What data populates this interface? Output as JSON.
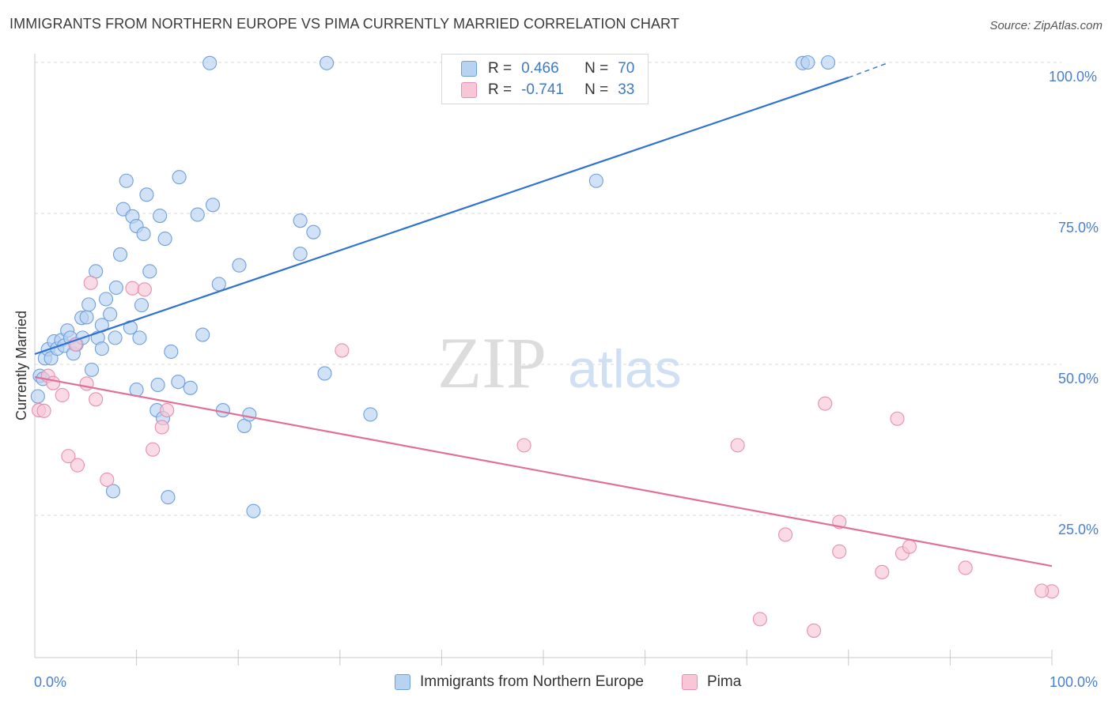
{
  "header": {
    "title": "IMMIGRANTS FROM NORTHERN EUROPE VS PIMA CURRENTLY MARRIED CORRELATION CHART",
    "source": "Source: ZipAtlas.com"
  },
  "watermark": {
    "zip": "ZIP",
    "atlas": "atlas"
  },
  "legend": {
    "rows": [
      {
        "r_key": "R =",
        "r_value": "0.466",
        "n_key": "N =",
        "n_value": "70",
        "color": "#a9c8f0"
      },
      {
        "r_key": "R =",
        "r_value": "-0.741",
        "n_key": "N =",
        "n_value": "33",
        "color": "#f6bcd0"
      }
    ]
  },
  "bottom_legend": {
    "items": [
      {
        "label": "Immigrants from Northern Europe",
        "color": "#a9c8f0"
      },
      {
        "label": "Pima",
        "color": "#f6bcd0"
      }
    ]
  },
  "axes": {
    "ylabel": "Currently Married",
    "x_ticks": {
      "left": "0.0%",
      "right": "100.0%"
    },
    "y_ticks": [
      "100.0%",
      "75.0%",
      "50.0%",
      "25.0%"
    ]
  },
  "colors": {
    "blue_fill": "#b8d2f2",
    "blue_stroke": "#6e9fdc",
    "blue_line": "#2f72d0",
    "pink_fill": "#f8c6d6",
    "pink_stroke": "#e68fae",
    "pink_line": "#e0709a",
    "grid": "#d9d9d9",
    "tick_text": "#4a7fcf"
  },
  "chart_data": {
    "type": "scatter",
    "xlim": [
      0,
      100
    ],
    "ylim": [
      0,
      100
    ],
    "xlabel": "",
    "ylabel": "Currently Married",
    "grid": true,
    "y_gridlines": [
      25,
      50,
      75,
      100
    ],
    "series": [
      {
        "name": "Immigrants from Northern Europe",
        "R": 0.466,
        "N": 70,
        "trend": {
          "x0": 0,
          "y0": 51.7,
          "x1": 80,
          "y1": 97.5,
          "dashed_to_x": 84,
          "dashed_to_y": 100
        },
        "points": [
          [
            0.3,
            44.7
          ],
          [
            0.5,
            48.1
          ],
          [
            0.8,
            47.6
          ],
          [
            1.0,
            51.0
          ],
          [
            1.3,
            52.5
          ],
          [
            1.6,
            51.0
          ],
          [
            1.9,
            53.8
          ],
          [
            2.2,
            52.6
          ],
          [
            2.6,
            54.0
          ],
          [
            2.9,
            53.1
          ],
          [
            3.2,
            55.6
          ],
          [
            3.5,
            54.4
          ],
          [
            3.8,
            51.8
          ],
          [
            4.1,
            53.3
          ],
          [
            4.6,
            57.7
          ],
          [
            4.7,
            54.4
          ],
          [
            5.1,
            57.8
          ],
          [
            5.3,
            59.9
          ],
          [
            5.6,
            49.1
          ],
          [
            6.0,
            65.4
          ],
          [
            6.2,
            54.4
          ],
          [
            6.6,
            52.6
          ],
          [
            6.6,
            56.5
          ],
          [
            7.0,
            60.8
          ],
          [
            7.4,
            58.3
          ],
          [
            7.7,
            29.0
          ],
          [
            7.9,
            54.4
          ],
          [
            8.0,
            62.7
          ],
          [
            8.4,
            68.2
          ],
          [
            8.7,
            75.7
          ],
          [
            9.0,
            80.4
          ],
          [
            9.4,
            56.1
          ],
          [
            9.6,
            74.5
          ],
          [
            10.0,
            45.8
          ],
          [
            10.0,
            72.9
          ],
          [
            10.3,
            54.4
          ],
          [
            10.5,
            59.8
          ],
          [
            10.7,
            71.6
          ],
          [
            11.0,
            78.1
          ],
          [
            11.3,
            65.4
          ],
          [
            12.0,
            42.4
          ],
          [
            12.1,
            46.6
          ],
          [
            12.3,
            74.6
          ],
          [
            12.6,
            41.1
          ],
          [
            12.8,
            70.8
          ],
          [
            13.1,
            28.0
          ],
          [
            13.4,
            52.1
          ],
          [
            14.1,
            47.1
          ],
          [
            14.2,
            81.0
          ],
          [
            15.3,
            46.1
          ],
          [
            16.0,
            74.8
          ],
          [
            16.5,
            54.9
          ],
          [
            17.2,
            99.9
          ],
          [
            17.5,
            76.4
          ],
          [
            18.1,
            63.3
          ],
          [
            18.5,
            42.4
          ],
          [
            20.1,
            66.4
          ],
          [
            20.6,
            39.8
          ],
          [
            21.1,
            41.7
          ],
          [
            21.5,
            25.7
          ],
          [
            26.1,
            73.8
          ],
          [
            26.1,
            68.3
          ],
          [
            27.4,
            71.9
          ],
          [
            28.5,
            48.5
          ],
          [
            28.7,
            99.9
          ],
          [
            33.0,
            41.7
          ],
          [
            55.2,
            80.4
          ],
          [
            75.5,
            99.9
          ],
          [
            76.0,
            100.0
          ],
          [
            78.0,
            100.0
          ]
        ]
      },
      {
        "name": "Pima",
        "R": -0.741,
        "N": 33,
        "trend": {
          "x0": 0,
          "y0": 47.9,
          "x1": 100,
          "y1": 16.6
        },
        "points": [
          [
            0.4,
            42.4
          ],
          [
            0.9,
            42.3
          ],
          [
            1.3,
            48.1
          ],
          [
            1.8,
            46.9
          ],
          [
            2.7,
            44.9
          ],
          [
            3.3,
            34.8
          ],
          [
            4.2,
            33.3
          ],
          [
            4.0,
            53.3
          ],
          [
            5.1,
            46.8
          ],
          [
            5.5,
            63.5
          ],
          [
            6.0,
            44.2
          ],
          [
            7.1,
            30.9
          ],
          [
            9.6,
            62.6
          ],
          [
            10.8,
            62.4
          ],
          [
            11.6,
            35.9
          ],
          [
            12.5,
            39.6
          ],
          [
            13.0,
            42.4
          ],
          [
            30.2,
            52.3
          ],
          [
            48.1,
            36.6
          ],
          [
            69.1,
            36.6
          ],
          [
            73.8,
            21.8
          ],
          [
            71.3,
            7.8
          ],
          [
            77.7,
            43.5
          ],
          [
            76.6,
            5.9
          ],
          [
            79.1,
            23.9
          ],
          [
            79.1,
            19.0
          ],
          [
            83.3,
            15.6
          ],
          [
            84.8,
            41.0
          ],
          [
            85.3,
            18.7
          ],
          [
            86.0,
            19.8
          ],
          [
            91.5,
            16.3
          ],
          [
            100.0,
            12.4
          ],
          [
            99.0,
            12.5
          ]
        ]
      }
    ]
  }
}
